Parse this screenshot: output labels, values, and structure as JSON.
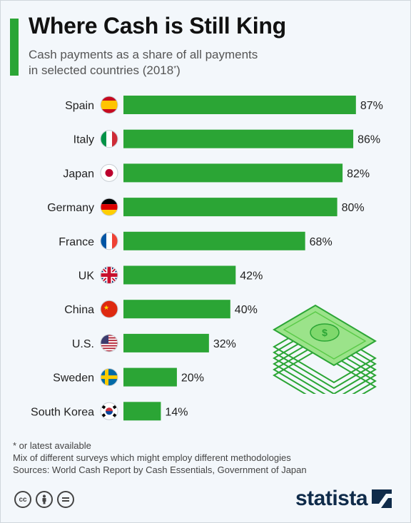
{
  "header": {
    "title": "Where Cash is Still King",
    "subtitle_line1": "Cash payments as a share of all payments",
    "subtitle_line2": "in selected countries (2018",
    "subtitle_sup": "*",
    "subtitle_end": ")"
  },
  "chart_data": {
    "type": "bar",
    "orientation": "horizontal",
    "title": "Where Cash is Still King",
    "subtitle": "Cash payments as a share of all payments in selected countries (2018*)",
    "categories": [
      "Spain",
      "Italy",
      "Japan",
      "Germany",
      "France",
      "UK",
      "China",
      "U.S.",
      "Sweden",
      "South Korea"
    ],
    "values": [
      87,
      86,
      82,
      80,
      68,
      42,
      40,
      32,
      20,
      14
    ],
    "value_labels": [
      "87%",
      "86%",
      "82%",
      "80%",
      "68%",
      "42%",
      "40%",
      "32%",
      "20%",
      "14%"
    ],
    "unit": "%",
    "xlim": [
      0,
      100
    ],
    "grid": false,
    "bar_color": "#2ba535"
  },
  "flags": [
    "spain-flag-icon",
    "italy-flag-icon",
    "japan-flag-icon",
    "germany-flag-icon",
    "france-flag-icon",
    "uk-flag-icon",
    "china-flag-icon",
    "us-flag-icon",
    "sweden-flag-icon",
    "south-korea-flag-icon"
  ],
  "footer": {
    "note": "* or latest available",
    "methodology": "Mix of different surveys which might employ different methodologies",
    "sources": "Sources: World Cash Report by Cash Essentials, Government of Japan",
    "brand": "statista",
    "license_icons": [
      "cc-icon",
      "attribution-icon",
      "no-derivatives-icon"
    ]
  },
  "colors": {
    "accent": "#2ba535",
    "background": "#f3f7fb",
    "brand": "#0f2b4a"
  }
}
